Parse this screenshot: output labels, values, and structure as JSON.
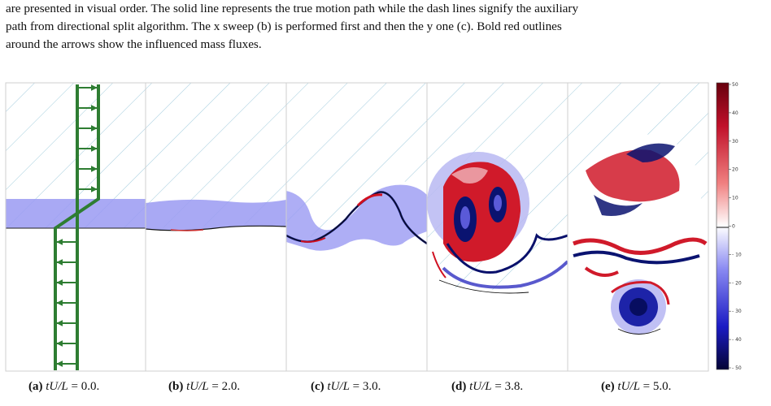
{
  "caption": {
    "lines": [
      "are presented in visual order. The solid line represents the true motion path while the dash lines signify the auxiliary",
      "path from directional split algorithm. The x sweep (b) is performed first and then the y one (c). Bold red outlines",
      "around the arrows show the influenced mass fluxes."
    ]
  },
  "panels": [
    {
      "label": "(a)",
      "expr": "tU/L",
      "eq": "= 0.0."
    },
    {
      "label": "(b)",
      "expr": "tU/L",
      "eq": "= 2.0."
    },
    {
      "label": "(c)",
      "expr": "tU/L",
      "eq": "= 3.0."
    },
    {
      "label": "(d)",
      "expr": "tU/L",
      "eq": "= 3.8."
    },
    {
      "label": "(e)",
      "expr": "tU/L",
      "eq": "= 5.0."
    }
  ],
  "colorbar": {
    "ticks": [
      "50",
      "40",
      "30",
      "20",
      "10",
      "0",
      "- 10",
      "- 20",
      "- 30",
      "- 40",
      "- 50"
    ],
    "colors": {
      "positive": "#b40426",
      "zero": "#ffffff",
      "negative": "#08106b"
    }
  },
  "colors": {
    "stream_band": "#9a9af2",
    "hatch": "#a9cfe0",
    "velocity_profile": "#2e7d32",
    "panel_border": "#cfcfcf"
  }
}
